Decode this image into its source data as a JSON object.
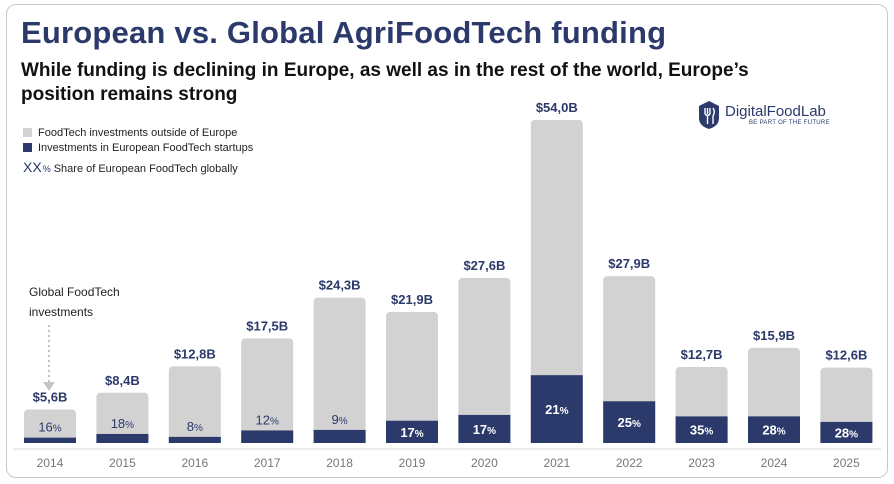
{
  "title": "European vs. Global AgriFoodTech funding",
  "subtitle": "While funding is declining in Europe, as well as in the rest of the world, Europe’s position remains strong",
  "legend": {
    "outside": "FoodTech investments outside of Europe",
    "europe": "Investments in European FoodTech startups",
    "share_xx": "XX",
    "share_pct": "%",
    "share_text": "Share of European FoodTech globally"
  },
  "logo": {
    "name": "DigitalFoodLab",
    "tagline": "BE PART OF THE FUTURE"
  },
  "annotation": {
    "line1": "Global FoodTech",
    "line2": "investments"
  },
  "colors": {
    "outside": "#d2d2d2",
    "europe": "#2c3a6b",
    "title": "#2c3a6b"
  },
  "chart_data": {
    "type": "bar",
    "stacked": true,
    "unit": "$B",
    "categories": [
      "2014",
      "2015",
      "2016",
      "2017",
      "2018",
      "2019",
      "2020",
      "2021",
      "2022",
      "2023",
      "2024",
      "2025"
    ],
    "total_labels": [
      "$5,6B",
      "$8,4B",
      "$12,8B",
      "$17,5B",
      "$24,3B",
      "$21,9B",
      "$27,6B",
      "$54,0B",
      "$27,9B",
      "$12,7B",
      "$15,9B",
      "$12,6B"
    ],
    "totals": [
      5.6,
      8.4,
      12.8,
      17.5,
      24.3,
      21.9,
      27.6,
      54.0,
      27.9,
      12.7,
      15.9,
      12.6
    ],
    "europe_share_pct": [
      16,
      18,
      8,
      12,
      9,
      17,
      17,
      21,
      25,
      35,
      28,
      28
    ],
    "share_labels": [
      "16",
      "18",
      "8",
      "12",
      "9",
      "17",
      "17",
      "21",
      "25",
      "35",
      "28",
      "28"
    ],
    "ylim": [
      0,
      54
    ],
    "grid": false,
    "legend_position": "top-left"
  }
}
